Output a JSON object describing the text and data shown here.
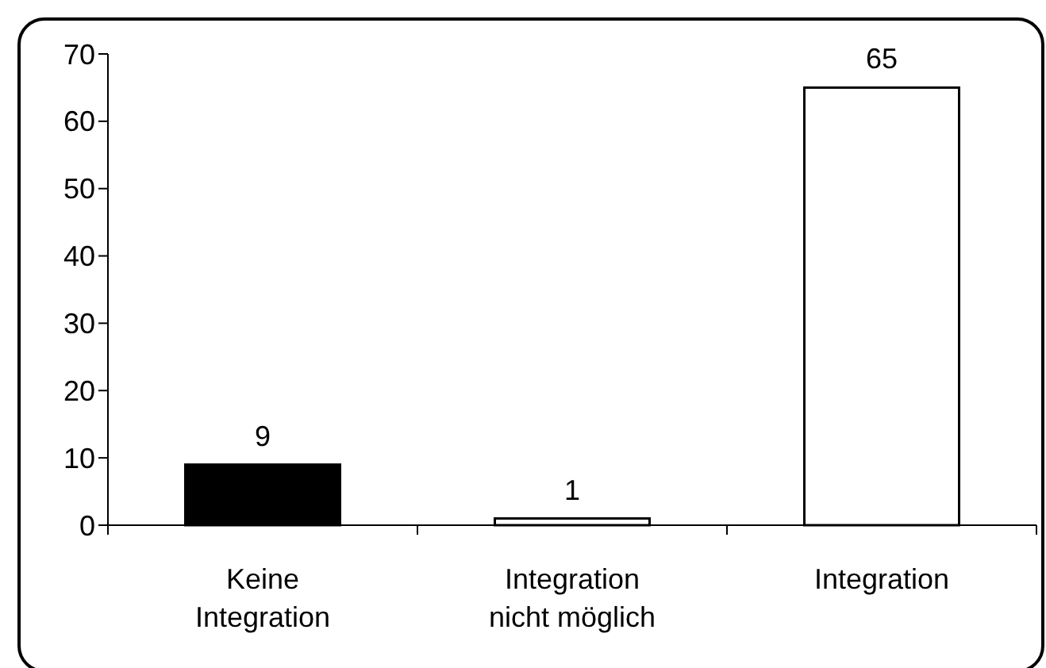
{
  "chart_data": {
    "type": "bar",
    "categories": [
      "Keine Integration",
      "Integration nicht möglich",
      "Integration"
    ],
    "values": [
      9,
      1,
      65
    ],
    "colors": [
      "#000000",
      "#ffffff",
      "#ffffff"
    ],
    "ylim": [
      0,
      70
    ],
    "yticks": [
      0,
      10,
      20,
      30,
      40,
      50,
      60,
      70
    ],
    "data_labels": true
  }
}
